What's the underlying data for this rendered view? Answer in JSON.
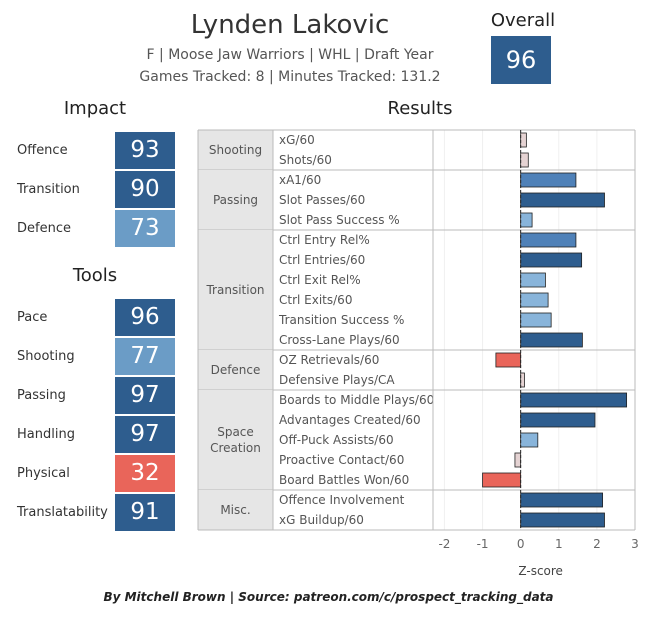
{
  "player": {
    "name": "Lynden Lakovic",
    "info_line": "F | Moose Jaw Warriors | WHL | Draft Year",
    "tracking_line": "Games Tracked: 8 | Minutes Tracked: 131.2"
  },
  "overall": {
    "label": "Overall",
    "value": "96"
  },
  "colors": {
    "dark_blue": "#2e5d8e",
    "mid_blue": "#4f81b8",
    "light_blue": "#88b4da",
    "red": "#e9655a",
    "neutral": "#e5d3d3"
  },
  "impact": {
    "title": "Impact",
    "items": [
      {
        "label": "Offence",
        "value": "93",
        "color": "#2e5d8e"
      },
      {
        "label": "Transition",
        "value": "90",
        "color": "#2e5d8e"
      },
      {
        "label": "Defence",
        "value": "73",
        "color": "#6b9cc6"
      }
    ]
  },
  "tools": {
    "title": "Tools",
    "items": [
      {
        "label": "Pace",
        "value": "96",
        "color": "#2e5d8e"
      },
      {
        "label": "Shooting",
        "value": "77",
        "color": "#6b9cc6"
      },
      {
        "label": "Passing",
        "value": "97",
        "color": "#2e5d8e"
      },
      {
        "label": "Handling",
        "value": "97",
        "color": "#2e5d8e"
      },
      {
        "label": "Physical",
        "value": "32",
        "color": "#e9655a"
      },
      {
        "label": "Translatability",
        "value": "91",
        "color": "#2e5d8e"
      }
    ]
  },
  "chart_data": {
    "type": "bar",
    "title": "Results",
    "xlabel": "Z-score",
    "xlim": [
      -2.3,
      3.0
    ],
    "xticks": [
      "-2",
      "-1",
      "0",
      "1",
      "2",
      "3"
    ],
    "groups": [
      {
        "name": "Shooting",
        "metrics": [
          {
            "name": "xG/60",
            "value": 0.15
          },
          {
            "name": "Shots/60",
            "value": 0.2
          }
        ]
      },
      {
        "name": "Passing",
        "metrics": [
          {
            "name": "xA1/60",
            "value": 1.45
          },
          {
            "name": "Slot Passes/60",
            "value": 2.2
          },
          {
            "name": "Slot Pass Success %",
            "value": 0.3
          }
        ]
      },
      {
        "name": "Transition",
        "metrics": [
          {
            "name": "Ctrl Entry Rel%",
            "value": 1.45
          },
          {
            "name": "Ctrl Entries/60",
            "value": 1.6
          },
          {
            "name": "Ctrl Exit Rel%",
            "value": 0.65
          },
          {
            "name": "Ctrl Exits/60",
            "value": 0.72
          },
          {
            "name": "Transition Success %",
            "value": 0.8
          },
          {
            "name": "Cross-Lane Plays/60",
            "value": 1.62
          }
        ]
      },
      {
        "name": "Defence",
        "metrics": [
          {
            "name": "OZ Retrievals/60",
            "value": -0.65
          },
          {
            "name": "Defensive Plays/CA",
            "value": 0.1
          }
        ]
      },
      {
        "name": "Space Creation",
        "metrics": [
          {
            "name": "Boards to Middle Plays/60",
            "value": 2.78
          },
          {
            "name": "Advantages Created/60",
            "value": 1.95
          },
          {
            "name": "Off-Puck Assists/60",
            "value": 0.45
          },
          {
            "name": "Proactive Contact/60",
            "value": -0.15
          },
          {
            "name": "Board Battles Won/60",
            "value": -1.0
          }
        ]
      },
      {
        "name": "Misc.",
        "metrics": [
          {
            "name": "Offence Involvement",
            "value": 2.15
          },
          {
            "name": "xG Buildup/60",
            "value": 2.2
          }
        ]
      }
    ]
  },
  "credit": "By Mitchell Brown | Source: patreon.com/c/prospect_tracking_data"
}
